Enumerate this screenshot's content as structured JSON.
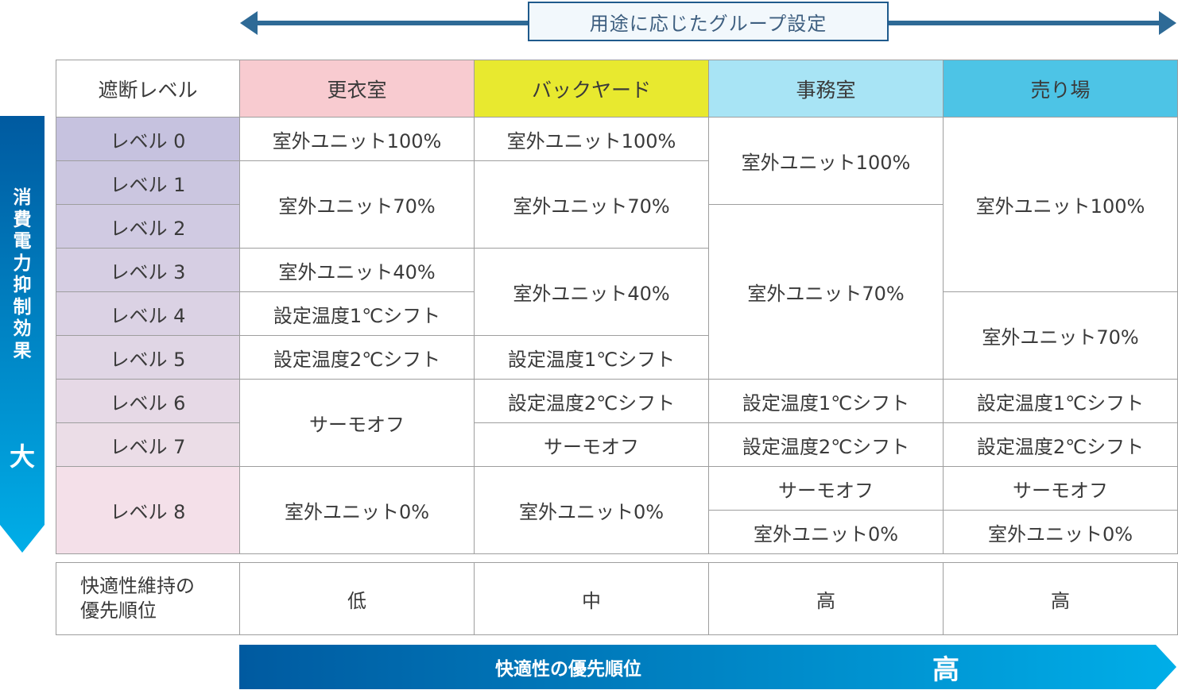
{
  "top_arrow": {
    "label": "用途に応じたグループ設定"
  },
  "left_arrow": {
    "label_chars": [
      "消",
      "費",
      "電",
      "力",
      "抑",
      "制",
      "効",
      "果"
    ],
    "big": "大"
  },
  "bottom_arrow": {
    "label": "快適性の優先順位",
    "big": "高"
  },
  "headers": {
    "corner": "遮断レベル",
    "groups": [
      "更衣室",
      "バックヤード",
      "事務室",
      "売り場"
    ]
  },
  "levels": [
    "レベル 0",
    "レベル 1",
    "レベル 2",
    "レベル 3",
    "レベル 4",
    "レベル 5",
    "レベル 6",
    "レベル 7",
    "レベル 8"
  ],
  "cells": {
    "kouishitsu": [
      "室外ユニット100%",
      "室外ユニット70%",
      "室外ユニット40%",
      "設定温度1℃シフト",
      "設定温度2℃シフト",
      "サーモオフ",
      "室外ユニット0%"
    ],
    "backyard": [
      "室外ユニット100%",
      "室外ユニット70%",
      "室外ユニット40%",
      "設定温度1℃シフト",
      "設定温度2℃シフト",
      "サーモオフ",
      "室外ユニット0%"
    ],
    "jimushitsu": [
      "室外ユニット100%",
      "室外ユニット70%",
      "設定温度1℃シフト",
      "設定温度2℃シフト",
      "サーモオフ",
      "室外ユニット0%"
    ],
    "uriba": [
      "室外ユニット100%",
      "室外ユニット70%",
      "設定温度1℃シフト",
      "設定温度2℃シフト",
      "サーモオフ",
      "室外ユニット0%"
    ]
  },
  "comfort": {
    "label": "快適性維持の\n優先順位",
    "values": [
      "低",
      "中",
      "高",
      "高"
    ]
  },
  "colors": {
    "header_kouishitsu": "#f8cbd0",
    "header_backyard": "#e8e92f",
    "header_jimushitsu": "#a8e4f5",
    "header_uriba": "#4dc4e6",
    "level_top": "#c6c2df",
    "level_bottom": "#f7e1ea",
    "arrow_dark": "#005aa0",
    "arrow_light": "#00aee8",
    "top_arrow": "#2e6a96"
  }
}
